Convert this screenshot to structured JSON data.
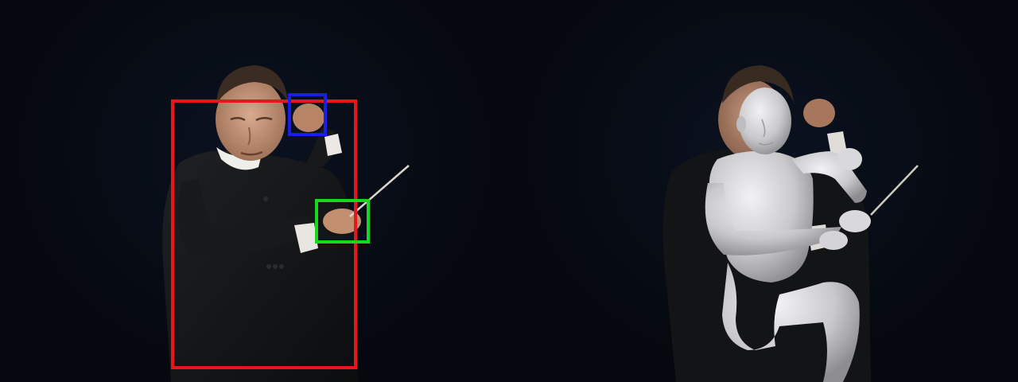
{
  "scene": {
    "left_panel": "original-photo-with-detection-boxes",
    "right_panel": "photo-with-3d-body-mesh-overlay"
  },
  "boxes": [
    {
      "name": "body-box",
      "color": "#e8161c"
    },
    {
      "name": "left-hand-box",
      "color": "#1a1ee8"
    },
    {
      "name": "right-hand-box",
      "color": "#18d81c"
    }
  ],
  "colors": {
    "background": "#060a12",
    "suit": "#141516",
    "skin": "#c99a7e",
    "hair": "#3a2c22",
    "mesh": "#cfcfd2"
  }
}
